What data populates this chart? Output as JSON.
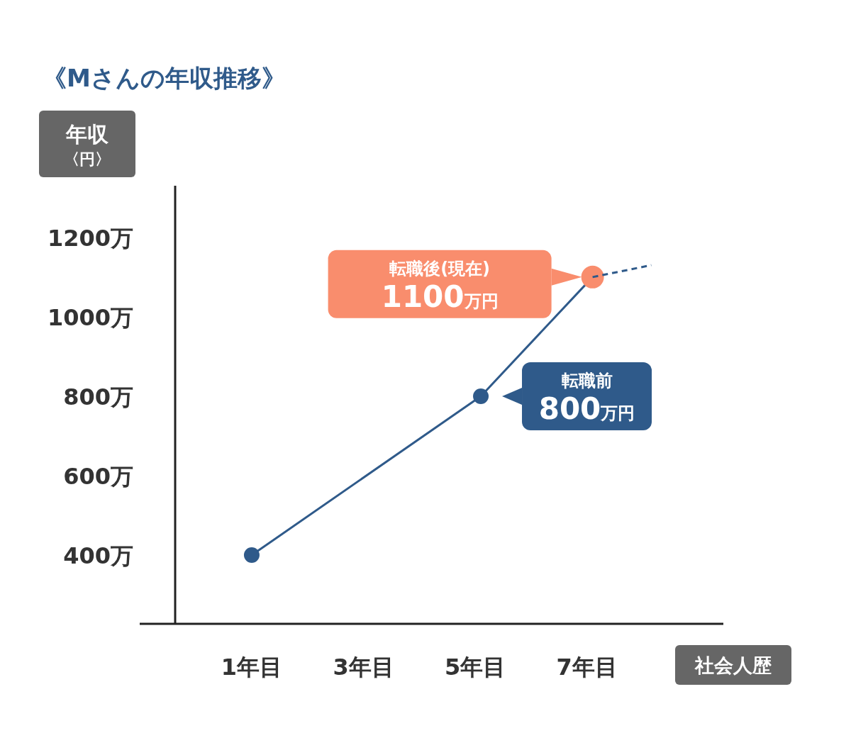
{
  "chart_data": {
    "type": "line",
    "title": "《Mさんの年収推移》",
    "ylabel": "年収〈円〉",
    "xlabel": "社会人歴",
    "xlim": [
      -0.37,
      9.44
    ],
    "ylim": [
      227,
      1330
    ],
    "xticks": [
      {
        "value": 1,
        "label": "1年目"
      },
      {
        "value": 3,
        "label": "3年目"
      },
      {
        "value": 5,
        "label": "5年目"
      },
      {
        "value": 7,
        "label": "7年目"
      }
    ],
    "yticks": [
      {
        "value": 400,
        "label": "400万"
      },
      {
        "value": 600,
        "label": "600万"
      },
      {
        "value": 800,
        "label": "800万"
      },
      {
        "value": 1000,
        "label": "1000万"
      },
      {
        "value": 1200,
        "label": "1200万"
      }
    ],
    "grid": false,
    "series": [
      {
        "x": [
          1,
          5.1,
          7.1
        ],
        "values": [
          400,
          800,
          1100
        ],
        "color": "#2f5a8a",
        "colors": [
          "#2f5a8a",
          "#2f5a8a",
          "#f98d6d"
        ],
        "marker": "circle",
        "line_style": "solid"
      },
      {
        "x": [
          7.1,
          8.15
        ],
        "values": [
          1100,
          1130
        ],
        "color": "#2f5a8a",
        "marker": "none",
        "line_style": "dashed"
      }
    ],
    "annotations": [
      "転職後(現在)\n1100万円",
      {
        "text": "転職前\n800万円",
        "x": 5.1,
        "y": 800
      }
    ]
  }
}
